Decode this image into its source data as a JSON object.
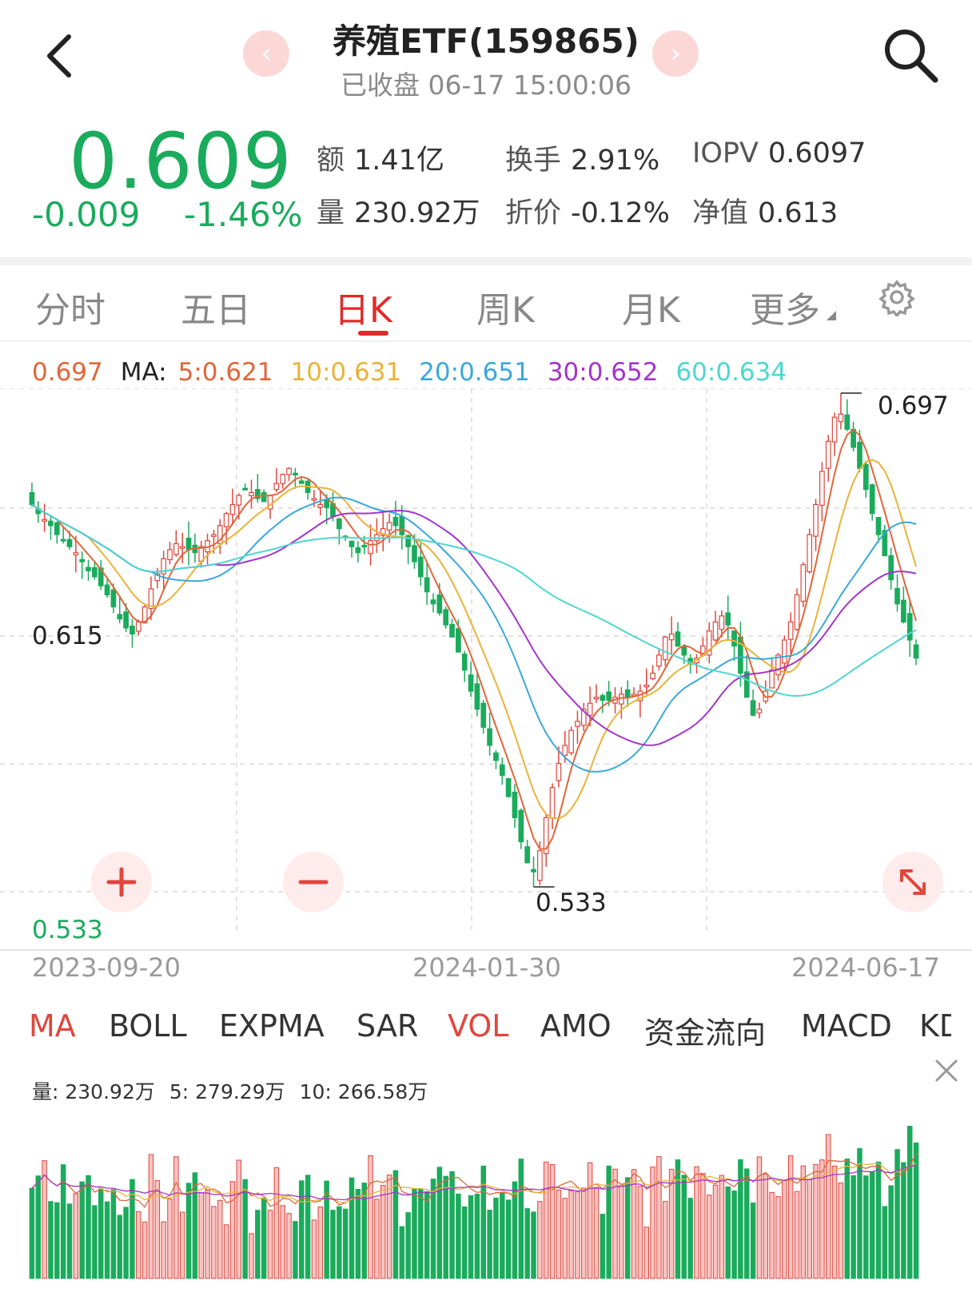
{
  "header": {
    "title": "养殖ETF(159865)",
    "status": "已收盘 06-17 15:00:06",
    "prev_glyph": "‹",
    "next_glyph": "›"
  },
  "quote": {
    "price": "0.609",
    "change": "-0.009",
    "change_pct": "-1.46%",
    "color_down": "#1aab5c",
    "color_up": "#e02a2a",
    "stats": [
      {
        "key": "额",
        "value": "1.41亿"
      },
      {
        "key": "换手",
        "value": "2.91%"
      },
      {
        "key": "IOPV",
        "value": "0.6097"
      },
      {
        "key": "量",
        "value": "230.92万"
      },
      {
        "key": "折价",
        "value": "-0.12%"
      },
      {
        "key": "净值",
        "value": "0.613"
      }
    ]
  },
  "tabs": [
    {
      "label": "分时"
    },
    {
      "label": "五日"
    },
    {
      "label": "日K",
      "active": true
    },
    {
      "label": "周K"
    },
    {
      "label": "月K"
    },
    {
      "label": "更多"
    }
  ],
  "ma_legend": {
    "price": "0.697",
    "prefix": "MA:",
    "items": [
      {
        "label": "5:0.621",
        "color": "#e0663a"
      },
      {
        "label": "10:0.631",
        "color": "#e8b339"
      },
      {
        "label": "20:0.651",
        "color": "#3ba8d8"
      },
      {
        "label": "30:0.652",
        "color": "#a335c9"
      },
      {
        "label": "60:0.634",
        "color": "#4fd6d0"
      }
    ]
  },
  "chart": {
    "high_label": "0.697",
    "low_label": "0.533",
    "mid_label": "0.615",
    "axis_low": "0.533",
    "dates": [
      "2023-09-20",
      "2024-01-30",
      "2024-06-17"
    ]
  },
  "chart_data": {
    "type": "candlestick",
    "x_start": "2023-09-20",
    "x_end": "2024-06-17",
    "ylim": [
      0.533,
      0.697
    ],
    "high": 0.697,
    "low": 0.533,
    "close": [
      0.66,
      0.657,
      0.655,
      0.653,
      0.65,
      0.648,
      0.646,
      0.644,
      0.641,
      0.638,
      0.636,
      0.633,
      0.63,
      0.626,
      0.622,
      0.619,
      0.617,
      0.621,
      0.626,
      0.632,
      0.637,
      0.642,
      0.645,
      0.647,
      0.646,
      0.645,
      0.644,
      0.646,
      0.648,
      0.65,
      0.653,
      0.657,
      0.66,
      0.663,
      0.665,
      0.664,
      0.662,
      0.661,
      0.663,
      0.667,
      0.67,
      0.672,
      0.67,
      0.667,
      0.664,
      0.662,
      0.66,
      0.659,
      0.656,
      0.652,
      0.649,
      0.646,
      0.644,
      0.646,
      0.648,
      0.65,
      0.652,
      0.654,
      0.653,
      0.65,
      0.646,
      0.641,
      0.636,
      0.631,
      0.627,
      0.624,
      0.62,
      0.616,
      0.611,
      0.605,
      0.598,
      0.592,
      0.586,
      0.58,
      0.575,
      0.57,
      0.563,
      0.556,
      0.548,
      0.541,
      0.538,
      0.545,
      0.556,
      0.566,
      0.574,
      0.58,
      0.585,
      0.588,
      0.592,
      0.594,
      0.596,
      0.595,
      0.595,
      0.596,
      0.597,
      0.596,
      0.597,
      0.598,
      0.6,
      0.604,
      0.61,
      0.616,
      0.617,
      0.613,
      0.61,
      0.607,
      0.609,
      0.613,
      0.618,
      0.621,
      0.623,
      0.62,
      0.613,
      0.604,
      0.596,
      0.59,
      0.592,
      0.598,
      0.605,
      0.61,
      0.615,
      0.621,
      0.63,
      0.64,
      0.65,
      0.66,
      0.671,
      0.681,
      0.689,
      0.69,
      0.685,
      0.679,
      0.672,
      0.665,
      0.657,
      0.65,
      0.643,
      0.635,
      0.627,
      0.621,
      0.615,
      0.609
    ],
    "ma": [
      {
        "name": "MA5",
        "value": 0.621,
        "color": "#e0663a"
      },
      {
        "name": "MA10",
        "value": 0.631,
        "color": "#e8b339"
      },
      {
        "name": "MA20",
        "value": 0.651,
        "color": "#3ba8d8"
      },
      {
        "name": "MA30",
        "value": 0.652,
        "color": "#a335c9"
      },
      {
        "name": "MA60",
        "value": 0.634,
        "color": "#4fd6d0"
      }
    ]
  },
  "indicators": [
    {
      "label": "MA",
      "active": true
    },
    {
      "label": "BOLL"
    },
    {
      "label": "EXPMA"
    },
    {
      "label": "SAR"
    },
    {
      "label": "VOL",
      "active": true
    },
    {
      "label": "AMO"
    },
    {
      "label": "资金流向"
    },
    {
      "label": "MACD"
    },
    {
      "label": "KD"
    }
  ],
  "volume_legend": {
    "vol": "量: 230.92万",
    "ma5": "5: 279.29万",
    "ma10": "10: 266.58万"
  }
}
